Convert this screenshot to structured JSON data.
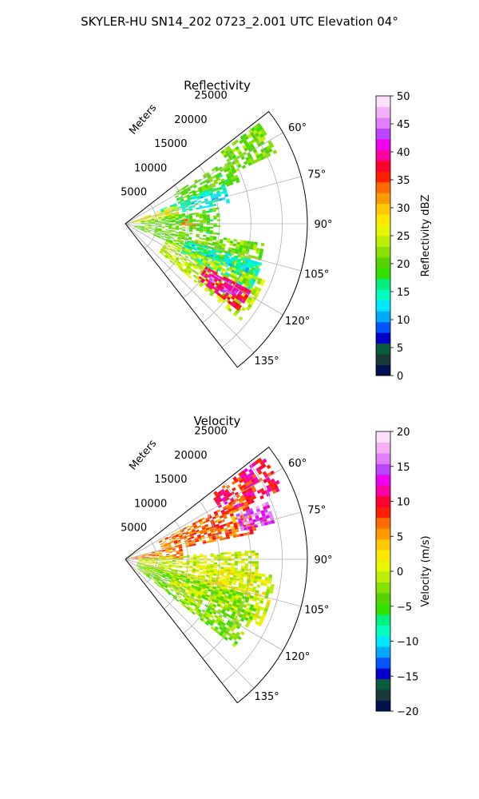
{
  "figure": {
    "suptitle": "SKYLER-HU  SN14_202  0723_2.001 UTC Elevation 04°"
  },
  "chart_data": [
    {
      "type": "heatmap",
      "projection": "polar-sector",
      "title": "Reflectivity",
      "radial_label": "Meters",
      "azimuth_range_deg": [
        52,
        142
      ],
      "range_max_m": 29000,
      "range_ticks_m": [
        5000,
        10000,
        15000,
        20000,
        25000
      ],
      "range_tick_labels": [
        "5000",
        "10000",
        "15000",
        "20000",
        "25000"
      ],
      "azimuth_ticks_deg": [
        60,
        75,
        90,
        105,
        120,
        135
      ],
      "azimuth_tick_labels": [
        "60°",
        "75°",
        "90°",
        "105°",
        "120°",
        "135°"
      ],
      "grid": true,
      "colorbar": {
        "label": "Reflectivity dBZ",
        "vmin": 0,
        "vmax": 50,
        "ticks": [
          0,
          5,
          10,
          15,
          20,
          25,
          30,
          35,
          40,
          45,
          50
        ],
        "tick_labels": [
          "0",
          "5",
          "10",
          "15",
          "20",
          "25",
          "30",
          "35",
          "40",
          "45",
          "50"
        ],
        "colors": [
          "#02114d",
          "#1a3a3a",
          "#0a5c3c",
          "#0000cc",
          "#0055ff",
          "#00a8ff",
          "#00e6ff",
          "#00ffbf",
          "#00f080",
          "#33e000",
          "#55d400",
          "#88e000",
          "#bbee00",
          "#e6f500",
          "#ffe800",
          "#ffc800",
          "#ff9a00",
          "#ff6a00",
          "#ff2000",
          "#ff0030",
          "#ff00a0",
          "#ee00ee",
          "#bb44ff",
          "#e080ff",
          "#f4b0f4",
          "#fbe0fb"
        ]
      },
      "regions": [
        {
          "az": [
            53,
            65
          ],
          "r": [
            19000,
            26500
          ],
          "value": 21
        },
        {
          "az": [
            58,
            70
          ],
          "r": [
            9000,
            19000
          ],
          "value": 20
        },
        {
          "az": [
            68,
            78
          ],
          "r": [
            6000,
            17000
          ],
          "value": 14
        },
        {
          "az": [
            70,
            84
          ],
          "r": [
            1000,
            8500
          ],
          "value": 27
        },
        {
          "az": [
            80,
            96
          ],
          "r": [
            2500,
            15000
          ],
          "value": 20
        },
        {
          "az": [
            86,
            92
          ],
          "r": [
            9000,
            11000
          ],
          "value": 33
        },
        {
          "az": [
            98,
            112
          ],
          "r": [
            1500,
            22000
          ],
          "value": 21
        },
        {
          "az": [
            106,
            118
          ],
          "r": [
            10000,
            22500
          ],
          "value": 14
        },
        {
          "az": [
            112,
            130
          ],
          "r": [
            7000,
            24000
          ],
          "value": 24
        },
        {
          "az": [
            118,
            127
          ],
          "r": [
            14500,
            22500
          ],
          "value": 38
        },
        {
          "az": [
            119,
            125
          ],
          "r": [
            16000,
            20500
          ],
          "value": 42
        }
      ]
    },
    {
      "type": "heatmap",
      "projection": "polar-sector",
      "title": "Velocity",
      "radial_label": "Meters",
      "azimuth_range_deg": [
        52,
        142
      ],
      "range_max_m": 29000,
      "range_ticks_m": [
        5000,
        10000,
        15000,
        20000,
        25000
      ],
      "range_tick_labels": [
        "5000",
        "10000",
        "15000",
        "20000",
        "25000"
      ],
      "azimuth_ticks_deg": [
        60,
        75,
        90,
        105,
        120,
        135
      ],
      "azimuth_tick_labels": [
        "60°",
        "75°",
        "90°",
        "105°",
        "120°",
        "135°"
      ],
      "grid": true,
      "colorbar": {
        "label": "Velocity (m/s)",
        "vmin": -20,
        "vmax": 20,
        "ticks": [
          -20,
          -15,
          -10,
          -5,
          0,
          5,
          10,
          15,
          20
        ],
        "tick_labels": [
          "−20",
          "−15",
          "−10",
          "−5",
          "0",
          "5",
          "10",
          "15",
          "20"
        ],
        "colors": [
          "#02114d",
          "#1a3a3a",
          "#0a5c3c",
          "#0000cc",
          "#0055ff",
          "#00a8ff",
          "#00e6ff",
          "#00ffbf",
          "#00f080",
          "#33e000",
          "#55d400",
          "#88e000",
          "#bbee00",
          "#e6f500",
          "#ffe800",
          "#ffc800",
          "#ff9a00",
          "#ff6a00",
          "#ff2000",
          "#ff0030",
          "#ff00a0",
          "#ee00ee",
          "#bb44ff",
          "#e080ff",
          "#f4b0f4",
          "#fbe0fb"
        ]
      },
      "regions": [
        {
          "az": [
            53,
            66
          ],
          "r": [
            17000,
            27000
          ],
          "value": 10
        },
        {
          "az": [
            62,
            78
          ],
          "r": [
            6000,
            21000
          ],
          "value": 7
        },
        {
          "az": [
            68,
            76
          ],
          "r": [
            19000,
            24000
          ],
          "value": 15
        },
        {
          "az": [
            76,
            90
          ],
          "r": [
            1000,
            9000
          ],
          "value": 6
        },
        {
          "az": [
            86,
            110
          ],
          "r": [
            2000,
            21000
          ],
          "value": 0
        },
        {
          "az": [
            96,
            116
          ],
          "r": [
            12000,
            24000
          ],
          "value": 1
        },
        {
          "az": [
            106,
            128
          ],
          "r": [
            2000,
            22000
          ],
          "value": -3
        },
        {
          "az": [
            112,
            122
          ],
          "r": [
            8000,
            14000
          ],
          "value": 0
        }
      ]
    }
  ]
}
